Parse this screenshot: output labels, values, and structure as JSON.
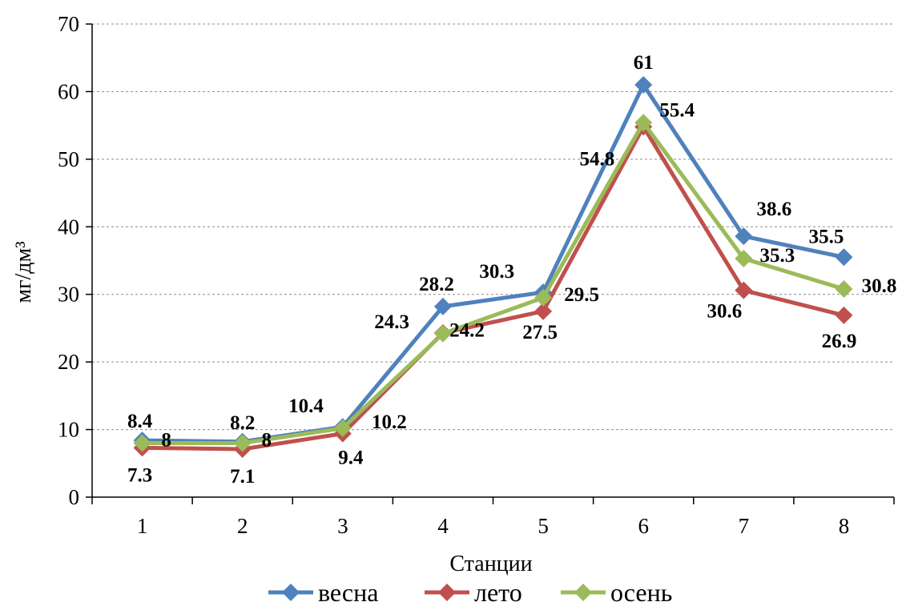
{
  "chart_data": {
    "type": "line",
    "categories": [
      "1",
      "2",
      "3",
      "4",
      "5",
      "6",
      "7",
      "8"
    ],
    "xlabel": "Станции",
    "ylabel": "мг/дм³",
    "ylim": [
      0,
      70
    ],
    "yticks": [
      0,
      10,
      20,
      30,
      40,
      50,
      60,
      70
    ],
    "grid": true,
    "legend_position": "bottom",
    "series": [
      {
        "name": "весна",
        "color": "#4F81BD",
        "values": [
          8.4,
          8.2,
          10.4,
          28.2,
          30.3,
          61,
          38.6,
          35.5
        ],
        "labels": [
          "8.4",
          "8.2",
          "10.4",
          "28.2",
          "30.3",
          "61",
          "38.6",
          "35.5"
        ]
      },
      {
        "name": "лето",
        "color": "#C0504D",
        "values": [
          7.3,
          7.1,
          9.4,
          24.3,
          27.5,
          54.8,
          30.6,
          26.9
        ],
        "labels": [
          "7.3",
          "7.1",
          "9.4",
          "24.3",
          "27.5",
          "54.8",
          "30.6",
          "26.9"
        ]
      },
      {
        "name": "осень",
        "color": "#9BBB59",
        "values": [
          8,
          8,
          10.2,
          24.2,
          29.5,
          55.4,
          35.3,
          30.8
        ],
        "labels": [
          "8",
          "8",
          "10.2",
          "24.2",
          "29.5",
          "55.4",
          "35.3",
          "30.8"
        ]
      }
    ]
  }
}
